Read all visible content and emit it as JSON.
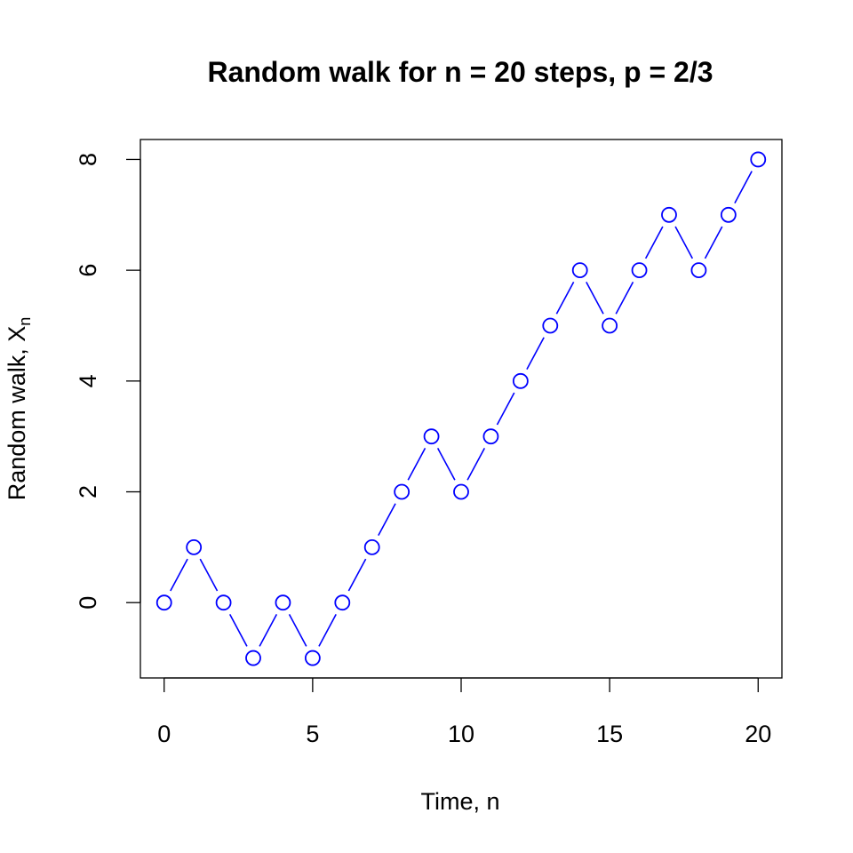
{
  "chart_data": {
    "type": "line",
    "title": "Random walk for n = 20 steps, p = 2/3",
    "xlabel": "Time, n",
    "ylabel": "Random walk, X",
    "ylabel_subscript": "n",
    "x": [
      0,
      1,
      2,
      3,
      4,
      5,
      6,
      7,
      8,
      9,
      10,
      11,
      12,
      13,
      14,
      15,
      16,
      17,
      18,
      19,
      20
    ],
    "y": [
      0,
      1,
      0,
      -1,
      0,
      -1,
      0,
      1,
      2,
      3,
      2,
      3,
      4,
      5,
      6,
      5,
      6,
      7,
      6,
      7,
      8
    ],
    "xlim": [
      -0.8,
      20.8
    ],
    "ylim": [
      -1.36,
      8.36
    ],
    "xticks": [
      0,
      5,
      10,
      15,
      20
    ],
    "yticks": [
      0,
      2,
      4,
      6,
      8
    ],
    "series_style": "points connected by dashed-gap line segments",
    "color": "#0000ff",
    "grid": false
  }
}
